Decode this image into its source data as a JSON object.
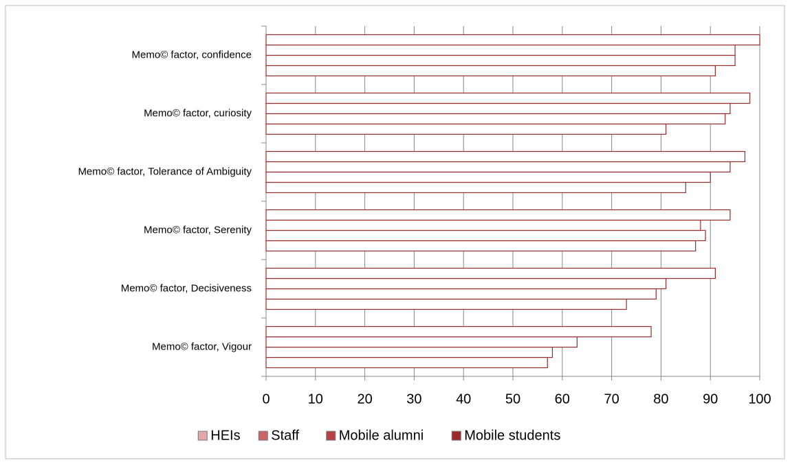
{
  "chart_data": {
    "type": "bar",
    "orientation": "horizontal",
    "categories": [
      "Memo© factor, confidence",
      "Memo© factor, curiosity",
      "Memo© factor, Tolerance of Ambiguity",
      "Memo© factor, Serenity",
      "Memo© factor, Decisiveness",
      "Memo© factor, Vigour"
    ],
    "series": [
      {
        "name": "HEIs",
        "color": "#e3a9a9",
        "values": [
          91,
          81,
          85,
          87,
          73,
          57
        ]
      },
      {
        "name": "Staff",
        "color": "#c96565",
        "values": [
          95,
          93,
          90,
          89,
          79,
          58
        ]
      },
      {
        "name": "Mobile alumni",
        "color": "#b54343",
        "values": [
          95,
          94,
          94,
          88,
          81,
          63
        ]
      },
      {
        "name": "Mobile students",
        "color": "#9b2a2a",
        "values": [
          100,
          98,
          97,
          94,
          91,
          78
        ]
      }
    ],
    "xlim": [
      0,
      100
    ],
    "xticks": [
      0,
      10,
      20,
      30,
      40,
      50,
      60,
      70,
      80,
      90,
      100
    ],
    "grid": true,
    "legend": "bottom"
  }
}
